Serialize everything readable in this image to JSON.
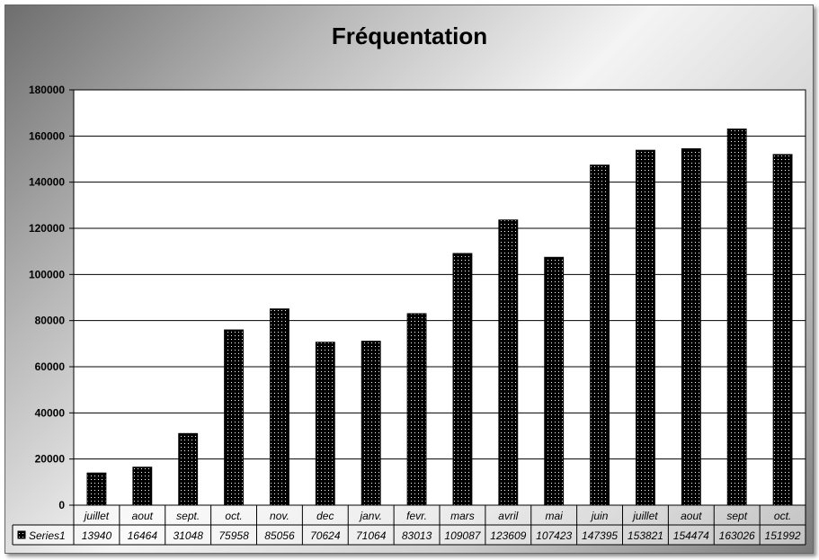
{
  "chart_data": {
    "type": "bar",
    "title": "Fréquentation",
    "categories": [
      "juillet",
      "aout",
      "sept.",
      "oct.",
      "nov.",
      "dec",
      "janv.",
      "fevr.",
      "mars",
      "avril",
      "mai",
      "juin",
      "juillet",
      "aout",
      "sept",
      "oct."
    ],
    "series": [
      {
        "name": "Series1",
        "values": [
          13940,
          16464,
          31048,
          75958,
          85056,
          70624,
          71064,
          83013,
          109087,
          123609,
          107423,
          147395,
          153821,
          154474,
          163026,
          151992
        ]
      }
    ],
    "ylim": [
      0,
      180000
    ],
    "yticks": [
      0,
      20000,
      40000,
      60000,
      80000,
      100000,
      120000,
      140000,
      160000,
      180000
    ],
    "grid": true,
    "data_table": true,
    "bar_pattern": "black-dotted",
    "colors": {
      "bar": "#000000",
      "dot": "#ffffff",
      "grid": "#000000"
    }
  }
}
